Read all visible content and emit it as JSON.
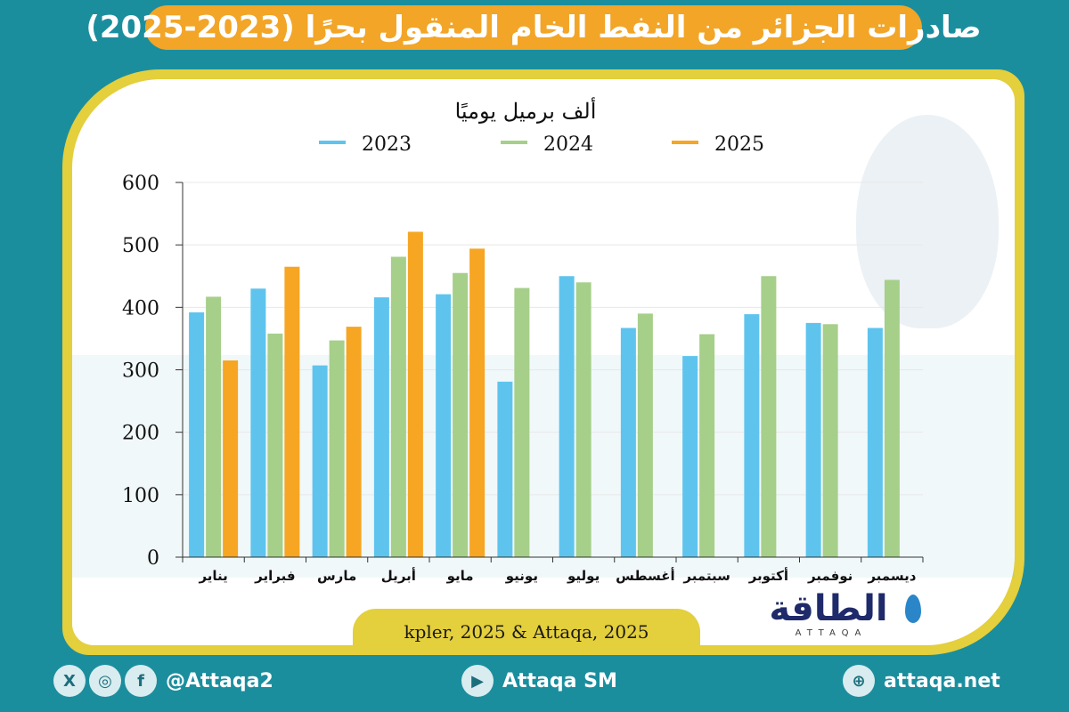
{
  "header": {
    "title": "صادرات الجزائر من النفط الخام المنقول بحرًا (2023-2025)"
  },
  "chart_data": {
    "type": "bar",
    "ylabel": "ألف برميل يوميًا",
    "ylim": [
      0,
      600
    ],
    "yticks": [
      0,
      100,
      200,
      300,
      400,
      500,
      600
    ],
    "grid": true,
    "legend_position": "top",
    "categories": [
      "يناير",
      "فبراير",
      "مارس",
      "أبريل",
      "مايو",
      "يونيو",
      "يوليو",
      "أغسطس",
      "سبتمبر",
      "أكتوبر",
      "نوفمبر",
      "ديسمبر"
    ],
    "series": [
      {
        "name": "2023",
        "color": "#5ec4ee",
        "values": [
          392,
          430,
          307,
          416,
          421,
          281,
          450,
          367,
          322,
          389,
          375,
          367
        ]
      },
      {
        "name": "2024",
        "color": "#a6cf8a",
        "values": [
          417,
          358,
          347,
          481,
          455,
          431,
          440,
          390,
          357,
          450,
          373,
          444
        ]
      },
      {
        "name": "2025",
        "color": "#f6a623",
        "values": [
          315,
          465,
          369,
          521,
          494,
          null,
          null,
          null,
          null,
          null,
          null,
          null
        ]
      }
    ]
  },
  "source": "kpler, 2025 & Attaqa, 2025",
  "logo": {
    "name": "الطاقة",
    "sub": "ATTAQA"
  },
  "footer": {
    "social_handle": "@Attaqa2",
    "youtube": "Attaqa SM",
    "website": "attaqa.net",
    "x_icon_char": "X",
    "instagram_icon_char": "◎",
    "facebook_icon_char": "f",
    "youtube_icon_char": "▶",
    "web_icon_char": "⊕"
  }
}
